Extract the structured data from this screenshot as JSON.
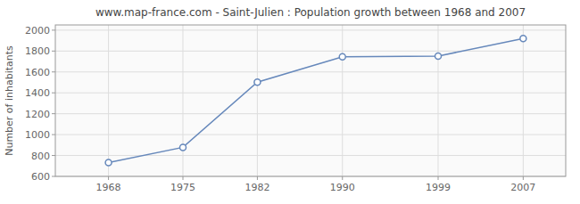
{
  "chart_data": {
    "type": "line",
    "title": "www.map-france.com - Saint-Julien : Population growth between 1968 and 2007",
    "y_label": "Number of inhabitants",
    "x": [
      1968,
      1975,
      1982,
      1990,
      1999,
      2007
    ],
    "values": [
      733,
      878,
      1502,
      1745,
      1752,
      1919
    ],
    "color": "#6688bb",
    "marker": "circle",
    "grid": true,
    "xlim": [
      1963,
      2011
    ],
    "xticks": [
      1968,
      1975,
      1982,
      1990,
      1999,
      2007
    ],
    "ylim": [
      600,
      2050
    ],
    "yticks": [
      600,
      800,
      1000,
      1200,
      1400,
      1600,
      1800,
      2000
    ]
  }
}
